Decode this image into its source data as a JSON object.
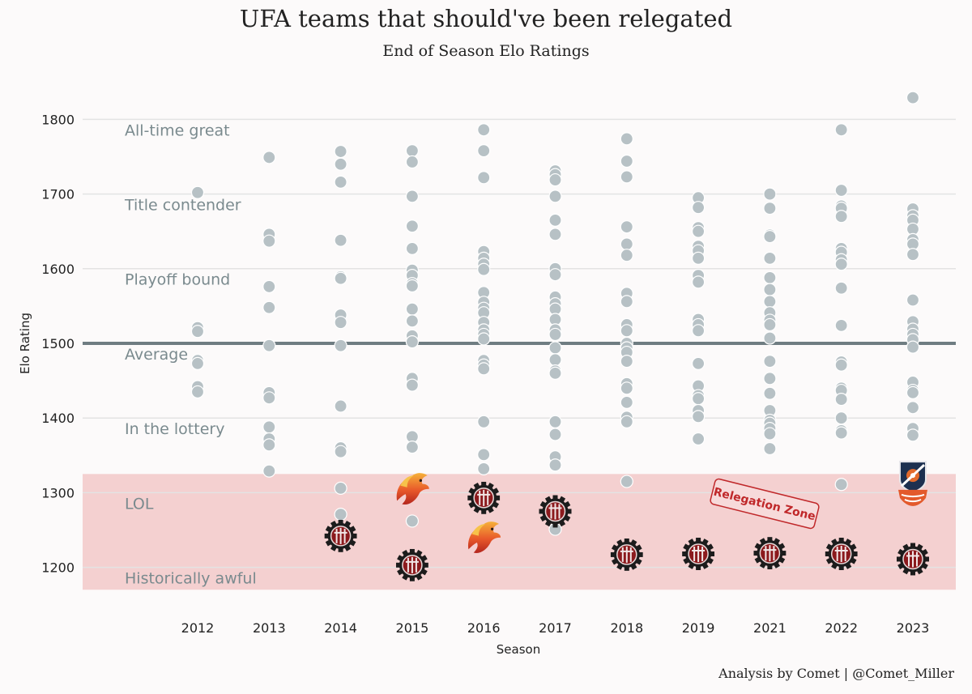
{
  "title": "UFA teams that should've been relegated",
  "subtitle": "End of Season Elo Ratings",
  "caption": "Analysis by Comet | @Comet_Miller",
  "colors": {
    "background": "#fcfafa",
    "point": "#b7c1c5",
    "average_line": "#6f7d82",
    "relegation_zone": "#f4d0d0",
    "relegation_text": "#c0282a",
    "grid": "#e3e3e3"
  },
  "chart_data": {
    "type": "scatter",
    "title": "UFA teams that should've been relegated",
    "subtitle": "End of Season Elo Ratings",
    "xlabel": "Season",
    "ylabel": "Elo Rating",
    "categories": [
      "2012",
      "2013",
      "2014",
      "2015",
      "2016",
      "2017",
      "2018",
      "2019",
      "2021",
      "2022",
      "2023"
    ],
    "ylim": [
      1170,
      1845
    ],
    "yticks": [
      1200,
      1300,
      1400,
      1500,
      1600,
      1700,
      1800
    ],
    "grid": true,
    "average": 1500,
    "relegation_zone": {
      "ymin": 1170,
      "ymax": 1325,
      "label": "Relegation Zone"
    },
    "tiers": [
      {
        "label": "All-time great",
        "y": 1786
      },
      {
        "label": "Title contender",
        "y": 1686
      },
      {
        "label": "Playoff bound",
        "y": 1586
      },
      {
        "label": "Average",
        "y": 1486
      },
      {
        "label": "In the lottery",
        "y": 1386
      },
      {
        "label": "LOL",
        "y": 1286
      },
      {
        "label": "Historically awful",
        "y": 1186
      }
    ],
    "series": [
      {
        "values": [
          [
            1702,
            1521,
            1516,
            1477,
            1473,
            1442,
            1435
          ],
          [
            1749,
            1646,
            1637,
            1576,
            1548,
            1497,
            1434,
            1427,
            1388,
            1372,
            1364,
            1329
          ],
          [
            1757,
            1740,
            1716,
            1638,
            1589,
            1587,
            1538,
            1528,
            1497,
            1416,
            1360,
            1355,
            1306,
            1271
          ],
          [
            1758,
            1743,
            1697,
            1657,
            1627,
            1598,
            1591,
            1580,
            1577,
            1546,
            1530,
            1510,
            1502,
            1453,
            1444,
            1375,
            1361,
            1262
          ],
          [
            1786,
            1758,
            1722,
            1623,
            1614,
            1606,
            1599,
            1568,
            1555,
            1547,
            1541,
            1528,
            1518,
            1512,
            1506,
            1477,
            1471,
            1466,
            1395,
            1351,
            1332
          ],
          [
            1731,
            1726,
            1719,
            1697,
            1665,
            1646,
            1600,
            1592,
            1562,
            1553,
            1546,
            1532,
            1518,
            1512,
            1494,
            1478,
            1463,
            1460,
            1395,
            1378,
            1348,
            1337,
            1251
          ],
          [
            1774,
            1744,
            1723,
            1656,
            1633,
            1618,
            1567,
            1556,
            1525,
            1517,
            1500,
            1494,
            1488,
            1476,
            1446,
            1440,
            1421,
            1401,
            1395,
            1315
          ],
          [
            1695,
            1682,
            1655,
            1650,
            1630,
            1624,
            1614,
            1591,
            1582,
            1532,
            1525,
            1517,
            1473,
            1443,
            1430,
            1426,
            1410,
            1402,
            1372
          ],
          [
            1700,
            1681,
            1645,
            1643,
            1614,
            1588,
            1572,
            1556,
            1541,
            1531,
            1525,
            1507,
            1476,
            1453,
            1433,
            1410,
            1397,
            1393,
            1386,
            1379,
            1359
          ],
          [
            1786,
            1705,
            1684,
            1681,
            1670,
            1627,
            1622,
            1612,
            1606,
            1574,
            1524,
            1475,
            1471,
            1440,
            1437,
            1425,
            1400,
            1383,
            1380,
            1311
          ],
          [
            1829,
            1680,
            1671,
            1665,
            1653,
            1639,
            1633,
            1619,
            1558,
            1529,
            1519,
            1512,
            1505,
            1495,
            1448,
            1437,
            1434,
            1414,
            1386,
            1377
          ]
        ]
      }
    ],
    "markers": [
      {
        "season": "2014",
        "y": 1242,
        "icon": "gear-logo-icon"
      },
      {
        "season": "2015",
        "y": 1305,
        "icon": "phoenix-logo-icon"
      },
      {
        "season": "2015",
        "y": 1203,
        "icon": "gear-logo-icon"
      },
      {
        "season": "2016",
        "y": 1293,
        "icon": "gear-logo-icon"
      },
      {
        "season": "2016",
        "y": 1240,
        "icon": "phoenix-logo-icon"
      },
      {
        "season": "2017",
        "y": 1275,
        "icon": "gear-logo-icon"
      },
      {
        "season": "2018",
        "y": 1217,
        "icon": "gear-logo-icon"
      },
      {
        "season": "2019",
        "y": 1218,
        "icon": "gear-logo-icon"
      },
      {
        "season": "2021",
        "y": 1219,
        "icon": "gear-logo-icon"
      },
      {
        "season": "2022",
        "y": 1218,
        "icon": "gear-logo-icon"
      },
      {
        "season": "2023",
        "y": 1211,
        "icon": "gear-logo-icon"
      },
      {
        "season": "2023",
        "y": 1322,
        "icon": "shield-logo-icon"
      },
      {
        "season": "2023",
        "y": 1293,
        "icon": "wave-logo-icon"
      }
    ]
  }
}
